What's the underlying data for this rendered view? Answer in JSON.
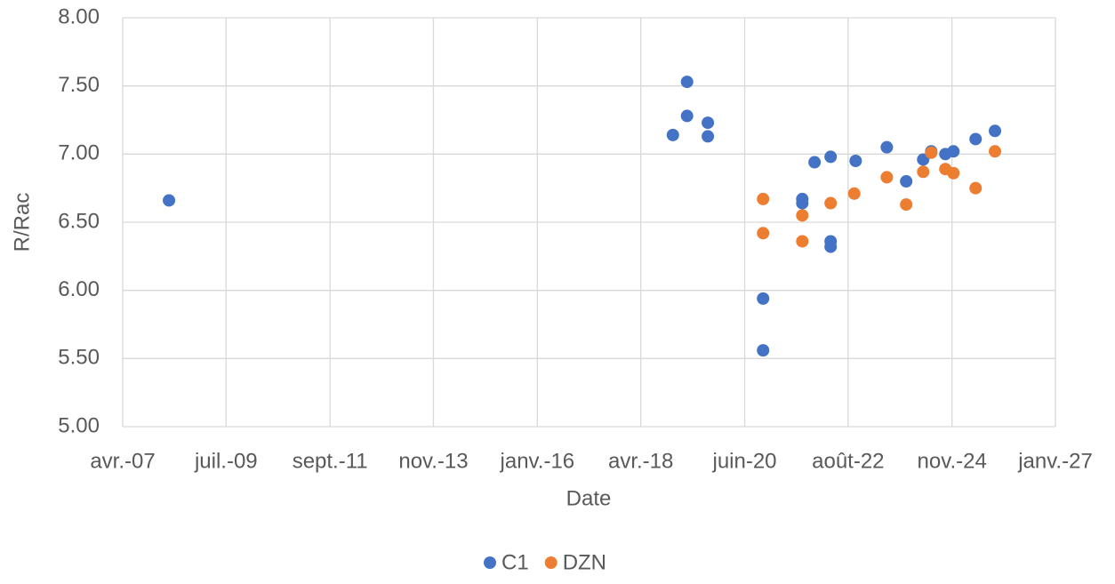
{
  "chart_data": {
    "type": "scatter",
    "x_label": "Date",
    "y_label": "R/Rac",
    "xlim": [
      2007.25,
      2027.0
    ],
    "xticks": [
      {
        "value": 2007.25,
        "label": "avr.-07"
      },
      {
        "value": 2009.44,
        "label": "juil.-09"
      },
      {
        "value": 2011.64,
        "label": "sept.-11"
      },
      {
        "value": 2013.83,
        "label": "nov.-13"
      },
      {
        "value": 2016.03,
        "label": "janv.-16"
      },
      {
        "value": 2018.22,
        "label": "avr.-18"
      },
      {
        "value": 2020.42,
        "label": "juin-20"
      },
      {
        "value": 2022.61,
        "label": "août-22"
      },
      {
        "value": 2024.81,
        "label": "nov.-24"
      },
      {
        "value": 2027.0,
        "label": "janv.-27"
      }
    ],
    "ylim": [
      5,
      8
    ],
    "yticks": [
      {
        "value": 5,
        "label": "5.00"
      },
      {
        "value": 5.5,
        "label": "5.50"
      },
      {
        "value": 6,
        "label": "6.00"
      },
      {
        "value": 6.5,
        "label": "6.50"
      },
      {
        "value": 7,
        "label": "7.00"
      },
      {
        "value": 7.5,
        "label": "7.50"
      },
      {
        "value": 8,
        "label": "8.00"
      }
    ],
    "grid": true,
    "legend": "bottom",
    "series": [
      {
        "name": "C1",
        "color": "#4472c4",
        "x": [
          2008.23,
          2018.9,
          2019.2,
          2019.2,
          2019.64,
          2019.64,
          2020.81,
          2020.81,
          2021.64,
          2021.64,
          2021.9,
          2022.24,
          2022.24,
          2022.24,
          2022.77,
          2023.43,
          2023.84,
          2024.2,
          2024.37,
          2024.67,
          2024.84,
          2025.31,
          2025.72
        ],
        "values": [
          6.66,
          7.14,
          7.53,
          7.28,
          7.23,
          7.13,
          5.94,
          5.56,
          6.67,
          6.64,
          6.94,
          6.98,
          6.36,
          6.32,
          6.95,
          7.05,
          6.8,
          6.96,
          7.02,
          7.0,
          7.02,
          7.11,
          7.17
        ]
      },
      {
        "name": "DZN",
        "color": "#ed7d31",
        "x": [
          2020.81,
          2020.81,
          2021.64,
          2021.64,
          2022.24,
          2022.74,
          2023.43,
          2023.84,
          2024.2,
          2024.37,
          2024.67,
          2024.84,
          2025.31,
          2025.72
        ],
        "values": [
          6.67,
          6.42,
          6.55,
          6.36,
          6.64,
          6.71,
          6.83,
          6.63,
          6.87,
          7.01,
          6.89,
          6.86,
          6.75,
          7.02
        ]
      }
    ]
  }
}
